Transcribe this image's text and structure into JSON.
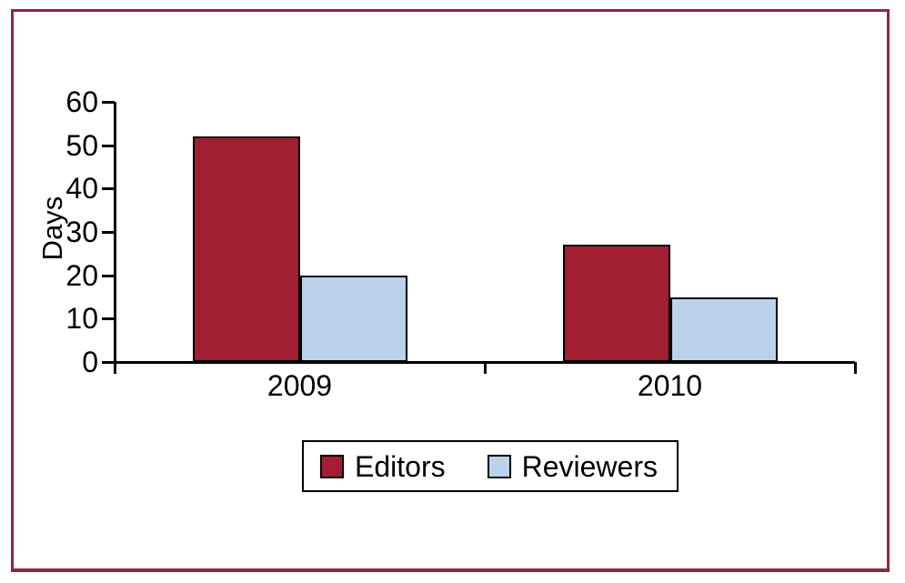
{
  "figure": {
    "background": "#ffffff",
    "border_color": "#8B2A3C"
  },
  "chart_data": {
    "type": "bar",
    "title": "",
    "xlabel": "",
    "ylabel": "Days",
    "categories": [
      "2009",
      "2010"
    ],
    "series": [
      {
        "name": "Editors",
        "color": "#A11E33",
        "values": [
          52,
          27
        ]
      },
      {
        "name": "Reviewers",
        "color": "#BAD2EB",
        "values": [
          20,
          15
        ]
      }
    ],
    "ylim": [
      0,
      60
    ],
    "yticks": [
      0,
      10,
      20,
      30,
      40,
      50,
      60
    ],
    "grid": false,
    "legend_position": "bottom-center",
    "axis_color": "#000000",
    "bar_outline_color": "#000000"
  }
}
